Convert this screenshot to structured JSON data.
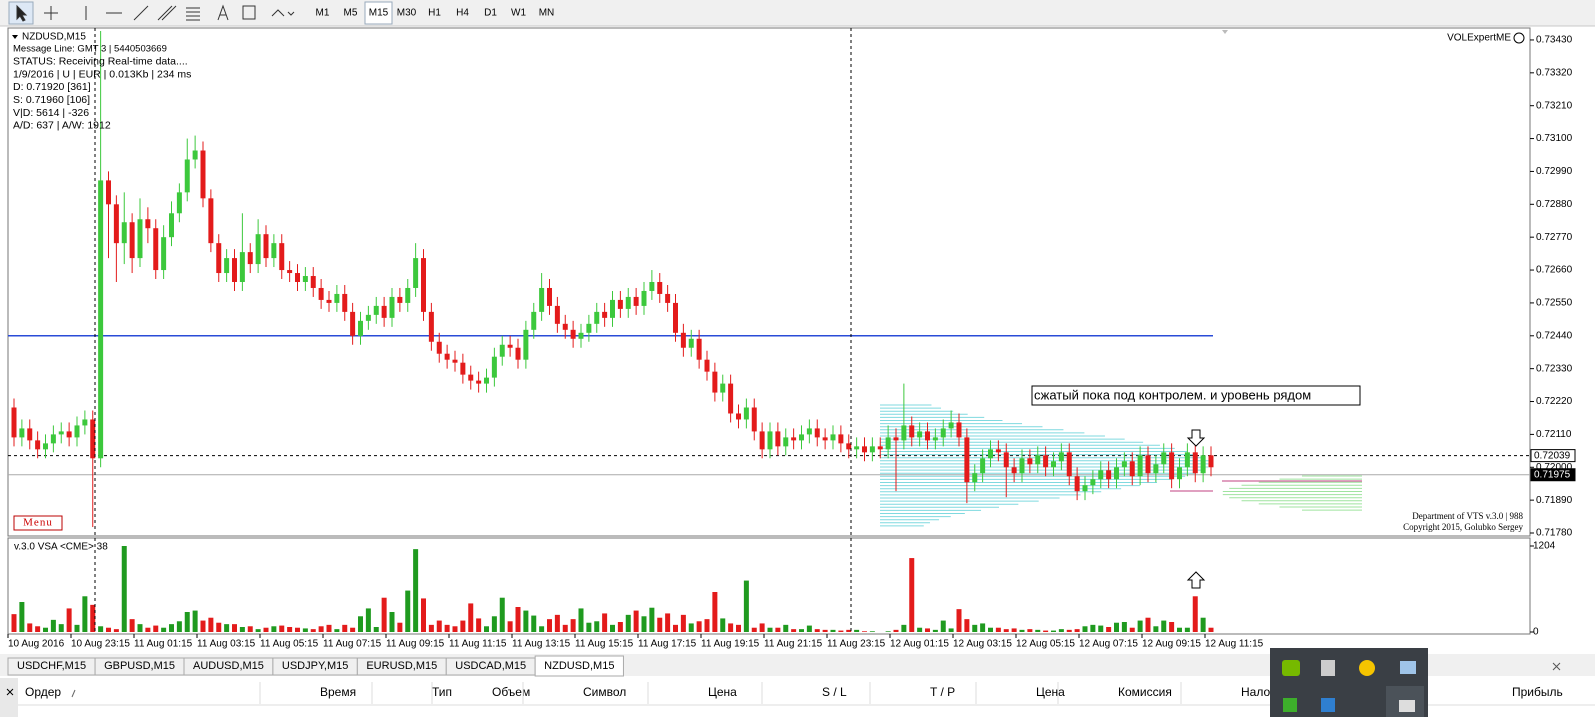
{
  "toolbar": {
    "timeframes": [
      "M1",
      "M5",
      "M15",
      "M30",
      "H1",
      "H4",
      "D1",
      "W1",
      "MN"
    ],
    "active": "M15"
  },
  "chart_data": {
    "type": "candlestick",
    "symbol_label": "NZDUSD,M15",
    "info_lines": [
      "Message Line: GMT 3 | 5440503669",
      "STATUS:  Receiving Real-time data....",
      "1/9/2016 | U | EUR | 0.013Kb | 234 ms",
      "D: 0.71920  [361]",
      "S: 0.71960  [106]",
      "V|D: 5614 | -326",
      "A/D: 637 | A/W: 1912"
    ],
    "indicator_label": "VOLExpertME",
    "menu_label": "Menu",
    "footer_lines": [
      "Department of VTS  v.3.0 | 988",
      "Copyright 2015, Golubko Sergey"
    ],
    "annotation": "сжатый пока под контролем. и уровень рядом",
    "up_color": "#3cc83c",
    "down_color": "#e31b1b",
    "open": [
      0.722,
      0.721,
      0.7213,
      0.7209,
      0.7206,
      0.7208,
      0.7211,
      0.7212,
      0.721,
      0.7214,
      0.7216,
      0.7203,
      0.7296,
      0.7288,
      0.7275,
      0.7282,
      0.727,
      0.7283,
      0.728,
      0.7266,
      0.7277,
      0.7285,
      0.7292,
      0.7303,
      0.7306,
      0.729,
      0.7275,
      0.7265,
      0.727,
      0.7262,
      0.7272,
      0.7268,
      0.7278,
      0.727,
      0.7275,
      0.7266,
      0.7265,
      0.7262,
      0.7264,
      0.726,
      0.7256,
      0.7255,
      0.7258,
      0.7252,
      0.7244,
      0.7249,
      0.7251,
      0.7254,
      0.725,
      0.7257,
      0.7255,
      0.726,
      0.727,
      0.7252,
      0.7242,
      0.7238,
      0.7236,
      0.7235,
      0.7231,
      0.7229,
      0.7228,
      0.723,
      0.7237,
      0.7241,
      0.724,
      0.7236,
      0.7246,
      0.7252,
      0.726,
      0.7254,
      0.7248,
      0.7246,
      0.7243,
      0.7245,
      0.7248,
      0.7252,
      0.725,
      0.7256,
      0.7253,
      0.7257,
      0.7254,
      0.7259,
      0.7262,
      0.7258,
      0.7255,
      0.7245,
      0.724,
      0.7243,
      0.7236,
      0.7232,
      0.7225,
      0.7228,
      0.7218,
      0.7216,
      0.722,
      0.7212,
      0.7206,
      0.7212,
      0.7207,
      0.721,
      0.7209,
      0.7211,
      0.7213,
      0.721,
      0.7209,
      0.7211,
      0.7208,
      0.7206,
      0.7207,
      0.7205,
      0.7207,
      0.7206,
      0.721,
      0.7209,
      0.7214,
      0.721,
      0.7212,
      0.7209,
      0.721,
      0.7213,
      0.7215,
      0.721,
      0.7195,
      0.7198,
      0.7203,
      0.7206,
      0.7205,
      0.72,
      0.7198,
      0.7203,
      0.7201,
      0.7204,
      0.72,
      0.7202,
      0.7205,
      0.7197,
      0.7192,
      0.7194,
      0.7196,
      0.7199,
      0.7196,
      0.72,
      0.7202,
      0.7197,
      0.7204,
      0.7198,
      0.7201,
      0.7205,
      0.7196,
      0.72,
      0.7205,
      0.7198,
      0.7204
    ],
    "high": [
      0.7223,
      0.7216,
      0.7216,
      0.7212,
      0.7211,
      0.7214,
      0.7215,
      0.7215,
      0.7217,
      0.7219,
      0.7219,
      0.7346,
      0.7299,
      0.7291,
      0.7292,
      0.7285,
      0.729,
      0.7287,
      0.7283,
      0.7281,
      0.7289,
      0.7295,
      0.731,
      0.7311,
      0.7309,
      0.7293,
      0.7278,
      0.7273,
      0.7273,
      0.7285,
      0.7275,
      0.7283,
      0.7281,
      0.7278,
      0.7278,
      0.7269,
      0.7268,
      0.7267,
      0.7267,
      0.7263,
      0.7259,
      0.7261,
      0.7261,
      0.7255,
      0.7252,
      0.7254,
      0.7257,
      0.7257,
      0.726,
      0.726,
      0.7263,
      0.7275,
      0.7273,
      0.7255,
      0.7245,
      0.7241,
      0.7239,
      0.7238,
      0.7234,
      0.7232,
      0.7233,
      0.724,
      0.7244,
      0.7244,
      0.7243,
      0.7249,
      0.7255,
      0.7265,
      0.7263,
      0.7257,
      0.7251,
      0.7249,
      0.7248,
      0.7251,
      0.7255,
      0.7255,
      0.7259,
      0.7259,
      0.726,
      0.726,
      0.7262,
      0.7266,
      0.7265,
      0.7261,
      0.7258,
      0.7248,
      0.7246,
      0.7246,
      0.7239,
      0.7235,
      0.7231,
      0.7231,
      0.7221,
      0.7223,
      0.7223,
      0.7215,
      0.7215,
      0.7215,
      0.7213,
      0.7213,
      0.7214,
      0.7216,
      0.7216,
      0.7213,
      0.7214,
      0.7214,
      0.7211,
      0.721,
      0.721,
      0.721,
      0.721,
      0.7214,
      0.7213,
      0.7228,
      0.7217,
      0.7215,
      0.7215,
      0.7213,
      0.7216,
      0.7219,
      0.7218,
      0.7213,
      0.7201,
      0.7206,
      0.7209,
      0.7209,
      0.7208,
      0.7203,
      0.7206,
      0.7206,
      0.7207,
      0.7207,
      0.7205,
      0.7208,
      0.7208,
      0.72,
      0.7197,
      0.7199,
      0.7202,
      0.7202,
      0.7203,
      0.7205,
      0.7205,
      0.7207,
      0.7207,
      0.7204,
      0.7208,
      0.7208,
      0.7203,
      0.7208,
      0.7208,
      0.7207,
      0.7207
    ],
    "low": [
      0.7207,
      0.7207,
      0.7206,
      0.7203,
      0.7203,
      0.7205,
      0.7208,
      0.7207,
      0.7207,
      0.7211,
      0.718,
      0.72,
      0.727,
      0.7262,
      0.7268,
      0.7265,
      0.7267,
      0.7275,
      0.7263,
      0.7263,
      0.7274,
      0.7282,
      0.7289,
      0.73,
      0.7287,
      0.7272,
      0.7262,
      0.7262,
      0.7259,
      0.7259,
      0.7265,
      0.7265,
      0.7267,
      0.7267,
      0.7263,
      0.7262,
      0.7259,
      0.7259,
      0.7257,
      0.7253,
      0.7252,
      0.7252,
      0.7249,
      0.7241,
      0.7241,
      0.7246,
      0.7248,
      0.7247,
      0.7247,
      0.7252,
      0.7252,
      0.7257,
      0.7249,
      0.7239,
      0.7235,
      0.7233,
      0.7232,
      0.7228,
      0.7226,
      0.7225,
      0.7225,
      0.7227,
      0.7234,
      0.7237,
      0.7233,
      0.7233,
      0.7243,
      0.7249,
      0.7251,
      0.7245,
      0.7243,
      0.724,
      0.724,
      0.7242,
      0.7245,
      0.7247,
      0.7247,
      0.725,
      0.725,
      0.7251,
      0.7251,
      0.7256,
      0.7255,
      0.7252,
      0.7242,
      0.7237,
      0.7237,
      0.7233,
      0.7229,
      0.7222,
      0.7222,
      0.7215,
      0.7213,
      0.7213,
      0.7209,
      0.7203,
      0.7203,
      0.7204,
      0.7204,
      0.7206,
      0.7206,
      0.7208,
      0.7207,
      0.7206,
      0.7206,
      0.7205,
      0.7203,
      0.7203,
      0.7202,
      0.7202,
      0.7203,
      0.7203,
      0.7192,
      0.7206,
      0.7207,
      0.7207,
      0.7206,
      0.7206,
      0.7207,
      0.721,
      0.7207,
      0.7188,
      0.7192,
      0.7195,
      0.72,
      0.7202,
      0.719,
      0.7195,
      0.7195,
      0.7198,
      0.7198,
      0.7197,
      0.7197,
      0.7199,
      0.7194,
      0.7189,
      0.7189,
      0.7191,
      0.7193,
      0.7193,
      0.7193,
      0.7197,
      0.7194,
      0.7194,
      0.7195,
      0.7195,
      0.7198,
      0.7193,
      0.7193,
      0.7197,
      0.7195,
      0.7195,
      0.7197
    ],
    "close": [
      0.721,
      0.7213,
      0.7209,
      0.7206,
      0.7208,
      0.7211,
      0.7212,
      0.721,
      0.7214,
      0.7216,
      0.7203,
      0.7296,
      0.7288,
      0.7275,
      0.7282,
      0.727,
      0.7283,
      0.728,
      0.7266,
      0.7277,
      0.7285,
      0.7292,
      0.7303,
      0.7306,
      0.729,
      0.7275,
      0.7265,
      0.727,
      0.7262,
      0.7272,
      0.7268,
      0.7278,
      0.727,
      0.7275,
      0.7266,
      0.7265,
      0.7262,
      0.7264,
      0.726,
      0.7256,
      0.7255,
      0.7258,
      0.7252,
      0.7244,
      0.7249,
      0.7251,
      0.7254,
      0.725,
      0.7257,
      0.7255,
      0.726,
      0.727,
      0.7252,
      0.7242,
      0.7238,
      0.7236,
      0.7235,
      0.7231,
      0.7229,
      0.7228,
      0.723,
      0.7237,
      0.7241,
      0.724,
      0.7236,
      0.7246,
      0.7252,
      0.726,
      0.7254,
      0.7248,
      0.7246,
      0.7243,
      0.7245,
      0.7248,
      0.7252,
      0.725,
      0.7256,
      0.7253,
      0.7257,
      0.7254,
      0.7259,
      0.7262,
      0.7258,
      0.7255,
      0.7245,
      0.724,
      0.7243,
      0.7236,
      0.7232,
      0.7225,
      0.7228,
      0.7218,
      0.7216,
      0.722,
      0.7212,
      0.7206,
      0.7212,
      0.7207,
      0.721,
      0.7209,
      0.7211,
      0.7213,
      0.721,
      0.7209,
      0.7211,
      0.7208,
      0.7206,
      0.7207,
      0.7205,
      0.7207,
      0.7206,
      0.721,
      0.7209,
      0.7214,
      0.721,
      0.7212,
      0.7209,
      0.721,
      0.7213,
      0.7215,
      0.721,
      0.7195,
      0.7198,
      0.7203,
      0.7206,
      0.7205,
      0.72,
      0.7198,
      0.7203,
      0.7201,
      0.7204,
      0.72,
      0.7202,
      0.7205,
      0.7197,
      0.7192,
      0.7194,
      0.7196,
      0.7199,
      0.7196,
      0.72,
      0.7202,
      0.7197,
      0.7204,
      0.7198,
      0.7201,
      0.7205,
      0.7196,
      0.72,
      0.7205,
      0.7198,
      0.7204,
      0.72
    ],
    "ylim": [
      0.7177,
      0.7347
    ],
    "yticks": [
      {
        "value": 0.7343,
        "label": "0.73430"
      },
      {
        "value": 0.7332,
        "label": "0.73320"
      },
      {
        "value": 0.7321,
        "label": "0.73210"
      },
      {
        "value": 0.731,
        "label": "0.73100"
      },
      {
        "value": 0.7299,
        "label": "0.72990"
      },
      {
        "value": 0.7288,
        "label": "0.72880"
      },
      {
        "value": 0.7277,
        "label": "0.72770"
      },
      {
        "value": 0.7266,
        "label": "0.72660"
      },
      {
        "value": 0.7255,
        "label": "0.72550"
      },
      {
        "value": 0.7244,
        "label": "0.72440"
      },
      {
        "value": 0.7233,
        "label": "0.72330"
      },
      {
        "value": 0.7222,
        "label": "0.72220"
      },
      {
        "value": 0.7211,
        "label": "0.72110"
      },
      {
        "value": 0.72,
        "label": "0.72000"
      },
      {
        "value": 0.7189,
        "label": "0.71890"
      },
      {
        "value": 0.7178,
        "label": "0.71780"
      }
    ],
    "level_line": {
      "value": 0.7244,
      "color": "#2a4bd7"
    },
    "price_lines": [
      {
        "value": 0.72039,
        "label": "0.72039"
      },
      {
        "value": 0.71975,
        "label": "0.71975"
      }
    ],
    "x_labels": [
      "10 Aug 2016",
      "10 Aug 23:15",
      "11 Aug 01:15",
      "11 Aug 03:15",
      "11 Aug 05:15",
      "11 Aug 07:15",
      "11 Aug 09:15",
      "11 Aug 11:15",
      "11 Aug 13:15",
      "11 Aug 15:15",
      "11 Aug 17:15",
      "11 Aug 19:15",
      "11 Aug 21:15",
      "11 Aug 23:15",
      "12 Aug 01:15",
      "12 Aug 03:15",
      "12 Aug 05:15",
      "12 Aug 07:15",
      "12 Aug 09:15",
      "12 Aug 11:15"
    ],
    "volume": {
      "title": "v.3.0 VSA <CME> 38",
      "values": [
        250,
        420,
        120,
        80,
        60,
        170,
        110,
        330,
        100,
        500,
        380,
        80,
        60,
        40,
        1204,
        180,
        110,
        60,
        90,
        60,
        110,
        150,
        280,
        300,
        160,
        200,
        130,
        110,
        110,
        70,
        80,
        40,
        60,
        80,
        90,
        70,
        60,
        50,
        40,
        80,
        100,
        40,
        100,
        60,
        220,
        330,
        70,
        480,
        280,
        130,
        580,
        1160,
        470,
        100,
        160,
        100,
        80,
        160,
        400,
        190,
        80,
        220,
        480,
        150,
        350,
        300,
        230,
        80,
        180,
        240,
        100,
        180,
        330,
        130,
        150,
        260,
        100,
        140,
        240,
        300,
        220,
        340,
        200,
        260,
        100,
        240,
        120,
        150,
        180,
        560,
        190,
        120,
        100,
        720,
        60,
        120,
        60,
        60,
        100,
        40,
        40,
        90,
        40,
        30,
        30,
        20,
        30,
        30,
        10,
        10,
        0,
        10,
        30,
        100,
        1035,
        60,
        50,
        30,
        160,
        50,
        320,
        180,
        100,
        120,
        60,
        60,
        40,
        50,
        30,
        40,
        30,
        20,
        20,
        40,
        30,
        40,
        80,
        100,
        90,
        70,
        130,
        140,
        60,
        160,
        200,
        80,
        160,
        140,
        60,
        60,
        500,
        200,
        60
      ],
      "ylim": [
        0,
        1204
      ],
      "yticks": [
        1204,
        0
      ]
    }
  },
  "tabs": {
    "labels": [
      "USDCHF,M15",
      "GBPUSD,M15",
      "AUDUSD,M15",
      "USDJPY,M15",
      "EURUSD,M15",
      "USDCAD,M15",
      "NZDUSD,M15"
    ],
    "active": "NZDUSD,M15"
  },
  "terminal": {
    "columns": [
      "Ордер",
      "Время",
      "Тип",
      "Объем",
      "Символ",
      "Цена",
      "S / L",
      "T / P",
      "Цена",
      "Комиссия",
      "Налог",
      "Прибыль"
    ]
  }
}
